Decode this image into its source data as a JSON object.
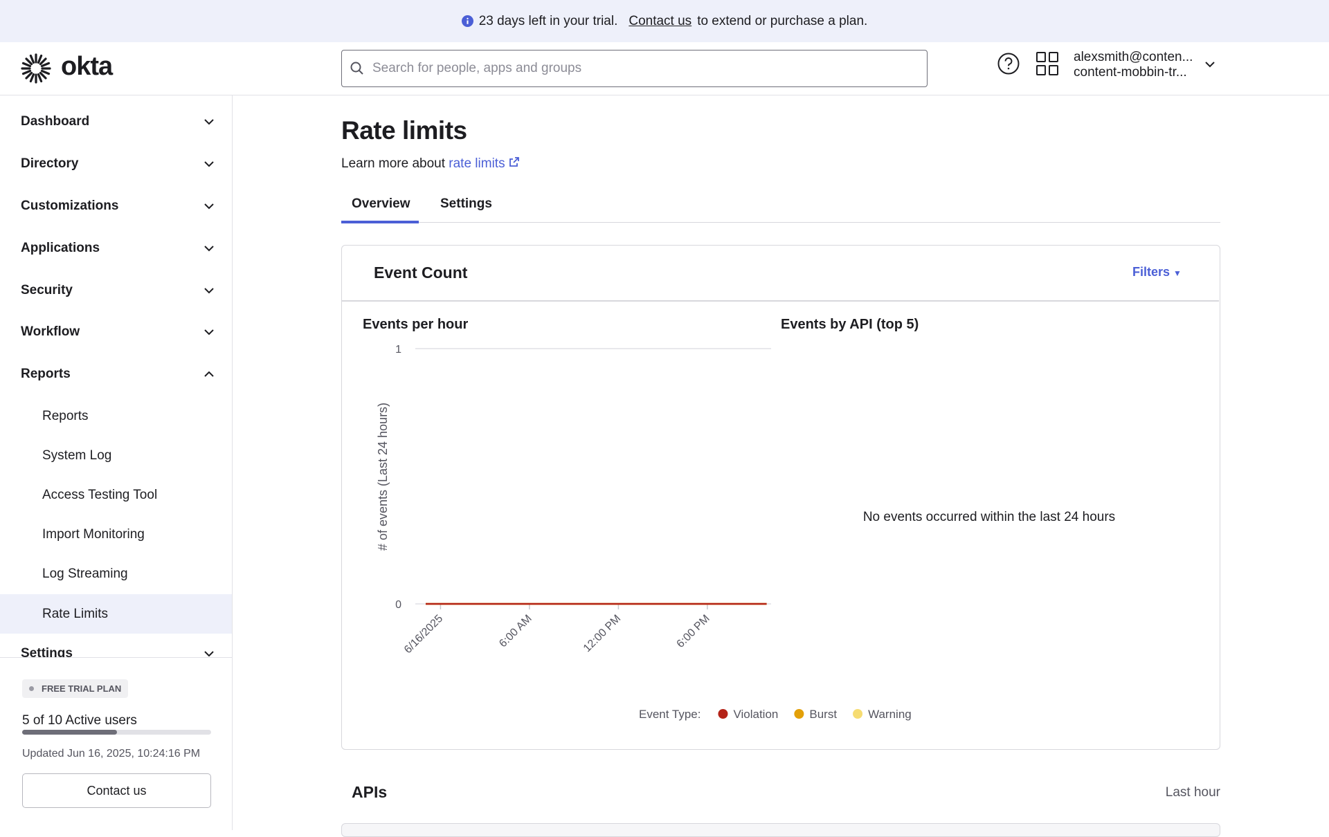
{
  "banner": {
    "text": "23 days left in your trial.",
    "link": "Contact us",
    "suffix": "to extend or purchase a plan."
  },
  "header": {
    "logo": "okta",
    "search_placeholder": "Search for people, apps and groups",
    "user_email": "alexsmith@conten...",
    "org": "content-mobbin-tr..."
  },
  "sidebar": {
    "sections": [
      "Dashboard",
      "Directory",
      "Customizations",
      "Applications",
      "Security",
      "Workflow",
      "Reports"
    ],
    "sub_items": [
      "Reports",
      "System Log",
      "Access Testing Tool",
      "Import Monitoring",
      "Log Streaming",
      "Rate Limits"
    ],
    "next_section": "Settings",
    "trial": {
      "badge": "FREE TRIAL PLAN",
      "users": "5 of 10 Active users",
      "updated": "Updated Jun 16, 2025, 10:24:16 PM",
      "button": "Contact us"
    }
  },
  "page": {
    "title": "Rate limits",
    "learn_more": "Learn more about",
    "link": "rate limits",
    "tabs": [
      "Overview",
      "Settings"
    ]
  },
  "card": {
    "title": "Event Count",
    "filters": "Filters"
  },
  "chart_data": [
    {
      "type": "line",
      "title": "Events per hour",
      "y_label": "# of events (Last 24 hours)",
      "x": [
        -1,
        0,
        1,
        2,
        3,
        4,
        5,
        6,
        7,
        8,
        9,
        10,
        11,
        12,
        13,
        14,
        15,
        16,
        17,
        18,
        19,
        20,
        21,
        22
      ],
      "xlim": [
        -1.7,
        22.3
      ],
      "xticks": [
        {
          "value": 0,
          "label": "6/16/2025"
        },
        {
          "value": 6,
          "label": "6:00 AM"
        },
        {
          "value": 12,
          "label": "12:00 PM"
        },
        {
          "value": 18,
          "label": "6:00 PM"
        }
      ],
      "ylim": [
        0,
        1
      ],
      "yticks": [
        0,
        1
      ],
      "grid": true,
      "legend_title": "Event Type:",
      "series": [
        {
          "name": "Violation",
          "color": "#b42318",
          "values": [
            0,
            0,
            0,
            0,
            0,
            0,
            0,
            0,
            0,
            0,
            0,
            0,
            0,
            0,
            0,
            0,
            0,
            0,
            0,
            0,
            0,
            0,
            0,
            0
          ]
        },
        {
          "name": "Burst",
          "color": "#e3a008",
          "values": [
            0,
            0,
            0,
            0,
            0,
            0,
            0,
            0,
            0,
            0,
            0,
            0,
            0,
            0,
            0,
            0,
            0,
            0,
            0,
            0,
            0,
            0,
            0,
            0
          ]
        },
        {
          "name": "Warning",
          "color": "#f6dc72",
          "values": [
            0,
            0,
            0,
            0,
            0,
            0,
            0,
            0,
            0,
            0,
            0,
            0,
            0,
            0,
            0,
            0,
            0,
            0,
            0,
            0,
            0,
            0,
            0,
            0
          ]
        }
      ]
    },
    {
      "type": "pie",
      "title": "Events by API (top 5)",
      "message": "No events occurred within the last 24 hours"
    }
  ],
  "apis": {
    "title": "APIs",
    "range": "Last hour"
  }
}
